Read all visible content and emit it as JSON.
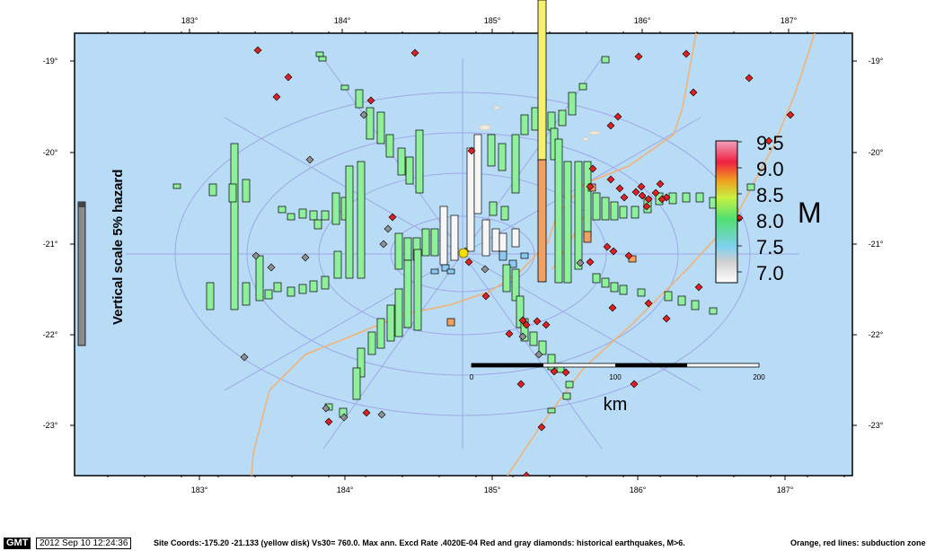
{
  "map": {
    "lon_ticks_top": [
      "183°",
      "184°",
      "185°",
      "186°",
      "187°"
    ],
    "lon_ticks_bottom": [
      "183°",
      "184°",
      "185°",
      "186°",
      "187°"
    ],
    "lat_ticks": [
      "-19°",
      "-20°",
      "-21°",
      "-22°",
      "-23°"
    ],
    "vertical_scale_label": "Vertical scale  5% hazard",
    "km_label": "km",
    "scalebar_ticks": [
      "0",
      "100",
      "200"
    ],
    "site_marker": "yellow-disk",
    "colors": {
      "ocean": "#b8dcf6",
      "grid": "#a0a6e6",
      "subduction_orange": "#f4b070",
      "subduction_red": "#e05030",
      "historical_red": "#e02020",
      "historical_gray": "#909090",
      "bar_green": "#8ef09a",
      "bar_white": "#f6f6f6",
      "bar_blue": "#8ccaf0"
    }
  },
  "legend": {
    "title": "M",
    "ticks": [
      "9.5",
      "9.0",
      "8.5",
      "8.0",
      "7.5",
      "7.0"
    ]
  },
  "footer": {
    "badge": "GMT",
    "timestamp": "2012 Sep 10 12:24:36",
    "caption": "Site Coords:-175.20  -21.133 (yellow disk) Vs30= 760.0. Max ann. Excd Rate .4020E-04 Red and gray diamonds: historical earthquakes, M>6.",
    "right": "Orange, red lines: subduction zone"
  }
}
